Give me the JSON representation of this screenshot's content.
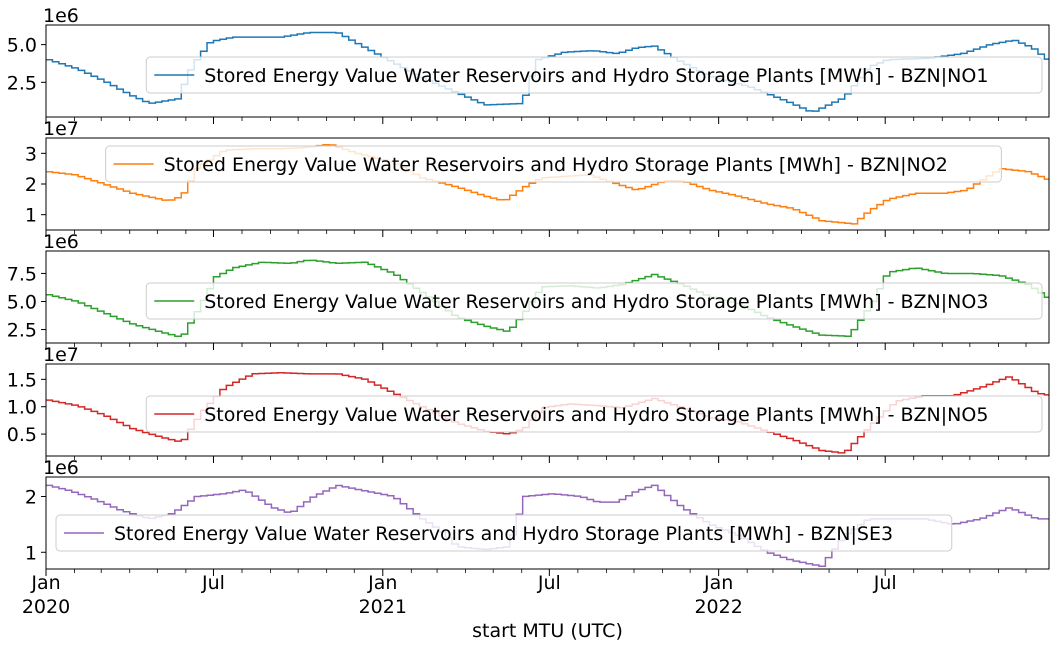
{
  "figure": {
    "xlabel": "start MTU (UTC)",
    "x_ticks": [
      {
        "date": "2020-01-01",
        "label": "Jan",
        "sublabel": "2020"
      },
      {
        "date": "2020-07-01",
        "label": "Jul",
        "sublabel": ""
      },
      {
        "date": "2021-01-01",
        "label": "Jan",
        "sublabel": "2021"
      },
      {
        "date": "2021-07-01",
        "label": "Jul",
        "sublabel": ""
      },
      {
        "date": "2022-01-01",
        "label": "Jan",
        "sublabel": "2022"
      },
      {
        "date": "2022-07-01",
        "label": "Jul",
        "sublabel": ""
      }
    ],
    "xlim": [
      "2020-01-01",
      "2022-12-26"
    ]
  },
  "chart_data": [
    {
      "type": "line",
      "step": true,
      "series": [
        {
          "name": "Stored Energy Value Water Reservoirs and Hydro Storage Plants [MWh] - BZN|NO1",
          "color": "#1f77b4",
          "keypoints": [
            [
              "2020-01-01",
              4.0
            ],
            [
              "2020-02-01",
              3.4
            ],
            [
              "2020-03-01",
              2.6
            ],
            [
              "2020-04-01",
              1.6
            ],
            [
              "2020-04-20",
              1.1
            ],
            [
              "2020-05-20",
              1.4
            ],
            [
              "2020-06-05",
              3.6
            ],
            [
              "2020-06-25",
              5.2
            ],
            [
              "2020-07-20",
              5.5
            ],
            [
              "2020-09-10",
              5.5
            ],
            [
              "2020-10-10",
              5.8
            ],
            [
              "2020-11-10",
              5.8
            ],
            [
              "2020-12-10",
              4.8
            ],
            [
              "2021-01-10",
              3.8
            ],
            [
              "2021-02-10",
              2.8
            ],
            [
              "2021-03-20",
              1.8
            ],
            [
              "2021-04-20",
              1.0
            ],
            [
              "2021-05-30",
              1.1
            ],
            [
              "2021-06-15",
              4.0
            ],
            [
              "2021-07-15",
              4.5
            ],
            [
              "2021-08-15",
              4.6
            ],
            [
              "2021-09-10",
              4.4
            ],
            [
              "2021-10-01",
              4.8
            ],
            [
              "2021-10-20",
              4.9
            ],
            [
              "2021-11-20",
              3.8
            ],
            [
              "2021-12-20",
              2.9
            ],
            [
              "2022-02-01",
              2.2
            ],
            [
              "2022-03-15",
              1.2
            ],
            [
              "2022-04-10",
              0.5
            ],
            [
              "2022-05-15",
              1.5
            ],
            [
              "2022-06-10",
              3.5
            ],
            [
              "2022-07-01",
              4.0
            ],
            [
              "2022-08-15",
              4.1
            ],
            [
              "2022-09-20",
              4.4
            ],
            [
              "2022-10-20",
              5.0
            ],
            [
              "2022-11-15",
              5.3
            ],
            [
              "2022-12-05",
              4.8
            ],
            [
              "2022-12-26",
              3.8
            ]
          ]
        }
      ],
      "ylim": [
        0.2,
        6.3
      ],
      "y_ticks": [
        2.5,
        5.0
      ],
      "y_tick_labels": [
        "2.5",
        "5.0"
      ],
      "scale_label": "1e6",
      "legend": "center-right"
    },
    {
      "type": "line",
      "step": true,
      "series": [
        {
          "name": "Stored Energy Value Water Reservoirs and Hydro Storage Plants [MWh] - BZN|NO2",
          "color": "#ff7f0e",
          "keypoints": [
            [
              "2020-01-01",
              2.4
            ],
            [
              "2020-01-30",
              2.3
            ],
            [
              "2020-03-01",
              2.0
            ],
            [
              "2020-04-01",
              1.7
            ],
            [
              "2020-05-10",
              1.45
            ],
            [
              "2020-05-25",
              1.6
            ],
            [
              "2020-06-10",
              2.5
            ],
            [
              "2020-07-10",
              3.1
            ],
            [
              "2020-08-10",
              3.15
            ],
            [
              "2020-09-10",
              3.15
            ],
            [
              "2020-10-10",
              3.2
            ],
            [
              "2020-11-01",
              3.3
            ],
            [
              "2020-12-01",
              3.0
            ],
            [
              "2021-01-10",
              2.7
            ],
            [
              "2021-02-10",
              2.2
            ],
            [
              "2021-03-20",
              1.9
            ],
            [
              "2021-04-20",
              1.6
            ],
            [
              "2021-05-10",
              1.45
            ],
            [
              "2021-06-01",
              1.9
            ],
            [
              "2021-06-20",
              2.2
            ],
            [
              "2021-08-10",
              2.3
            ],
            [
              "2021-09-10",
              2.0
            ],
            [
              "2021-10-01",
              1.8
            ],
            [
              "2021-11-01",
              2.1
            ],
            [
              "2021-11-20",
              2.1
            ],
            [
              "2021-12-20",
              1.8
            ],
            [
              "2022-01-20",
              1.6
            ],
            [
              "2022-02-20",
              1.35
            ],
            [
              "2022-03-20",
              1.2
            ],
            [
              "2022-04-20",
              0.8
            ],
            [
              "2022-05-25",
              0.7
            ],
            [
              "2022-06-10",
              1.1
            ],
            [
              "2022-07-01",
              1.5
            ],
            [
              "2022-08-01",
              1.7
            ],
            [
              "2022-09-01",
              1.7
            ],
            [
              "2022-09-25",
              1.8
            ],
            [
              "2022-10-10",
              2.1
            ],
            [
              "2022-11-01",
              2.5
            ],
            [
              "2022-12-01",
              2.4
            ],
            [
              "2022-12-26",
              2.1
            ]
          ]
        }
      ],
      "ylim": [
        0.5,
        3.5
      ],
      "y_ticks": [
        1,
        2,
        3
      ],
      "y_tick_labels": [
        "1",
        "2",
        "3"
      ],
      "scale_label": "1e7",
      "legend": "top-center"
    },
    {
      "type": "line",
      "step": true,
      "series": [
        {
          "name": "Stored Energy Value Water Reservoirs and Hydro Storage Plants [MWh] - BZN|NO3",
          "color": "#2ca02c",
          "keypoints": [
            [
              "2020-01-01",
              5.6
            ],
            [
              "2020-02-01",
              5.0
            ],
            [
              "2020-03-01",
              4.0
            ],
            [
              "2020-04-01",
              3.0
            ],
            [
              "2020-05-01",
              2.3
            ],
            [
              "2020-05-25",
              1.8
            ],
            [
              "2020-06-15",
              4.8
            ],
            [
              "2020-07-01",
              7.2
            ],
            [
              "2020-07-20",
              8.0
            ],
            [
              "2020-08-20",
              8.5
            ],
            [
              "2020-09-20",
              8.4
            ],
            [
              "2020-10-10",
              8.7
            ],
            [
              "2020-11-10",
              8.4
            ],
            [
              "2020-12-10",
              8.5
            ],
            [
              "2021-01-10",
              7.5
            ],
            [
              "2021-02-10",
              5.8
            ],
            [
              "2021-03-20",
              3.6
            ],
            [
              "2021-04-20",
              2.8
            ],
            [
              "2021-05-15",
              2.3
            ],
            [
              "2021-06-01",
              4.0
            ],
            [
              "2021-06-20",
              6.3
            ],
            [
              "2021-07-20",
              6.4
            ],
            [
              "2021-08-20",
              6.2
            ],
            [
              "2021-09-15",
              6.5
            ],
            [
              "2021-10-20",
              7.4
            ],
            [
              "2021-11-20",
              6.5
            ],
            [
              "2021-12-20",
              5.4
            ],
            [
              "2022-01-20",
              4.8
            ],
            [
              "2022-02-20",
              3.6
            ],
            [
              "2022-03-20",
              2.8
            ],
            [
              "2022-04-20",
              2.0
            ],
            [
              "2022-05-20",
              1.9
            ],
            [
              "2022-06-15",
              5.0
            ],
            [
              "2022-07-01",
              7.6
            ],
            [
              "2022-08-01",
              8.0
            ],
            [
              "2022-09-01",
              7.5
            ],
            [
              "2022-10-01",
              7.5
            ],
            [
              "2022-11-01",
              7.3
            ],
            [
              "2022-12-01",
              6.5
            ],
            [
              "2022-12-26",
              5.1
            ]
          ]
        }
      ],
      "ylim": [
        1.3,
        9.5
      ],
      "y_ticks": [
        2.5,
        5.0,
        7.5
      ],
      "y_tick_labels": [
        "2.5",
        "5.0",
        "7.5"
      ],
      "scale_label": "1e6",
      "legend": "center-right"
    },
    {
      "type": "line",
      "step": true,
      "series": [
        {
          "name": "Stored Energy Value Water Reservoirs and Hydro Storage Plants [MWh] - BZN|NO5",
          "color": "#d62728",
          "keypoints": [
            [
              "2020-01-01",
              1.12
            ],
            [
              "2020-02-01",
              1.02
            ],
            [
              "2020-03-01",
              0.85
            ],
            [
              "2020-04-01",
              0.6
            ],
            [
              "2020-05-01",
              0.45
            ],
            [
              "2020-05-25",
              0.35
            ],
            [
              "2020-06-15",
              0.9
            ],
            [
              "2020-07-10",
              1.35
            ],
            [
              "2020-08-10",
              1.6
            ],
            [
              "2020-09-10",
              1.62
            ],
            [
              "2020-10-10",
              1.6
            ],
            [
              "2020-11-10",
              1.6
            ],
            [
              "2020-12-10",
              1.5
            ],
            [
              "2021-01-10",
              1.25
            ],
            [
              "2021-02-10",
              1.0
            ],
            [
              "2021-03-20",
              0.7
            ],
            [
              "2021-04-20",
              0.55
            ],
            [
              "2021-05-15",
              0.5
            ],
            [
              "2021-06-01",
              0.6
            ],
            [
              "2021-06-20",
              0.98
            ],
            [
              "2021-07-20",
              1.05
            ],
            [
              "2021-08-20",
              1.02
            ],
            [
              "2021-09-15",
              0.98
            ],
            [
              "2021-10-20",
              1.15
            ],
            [
              "2021-11-20",
              0.98
            ],
            [
              "2021-12-20",
              0.8
            ],
            [
              "2022-01-20",
              0.72
            ],
            [
              "2022-02-20",
              0.55
            ],
            [
              "2022-03-20",
              0.4
            ],
            [
              "2022-04-20",
              0.2
            ],
            [
              "2022-05-15",
              0.15
            ],
            [
              "2022-06-15",
              0.7
            ],
            [
              "2022-07-10",
              1.1
            ],
            [
              "2022-08-10",
              1.2
            ],
            [
              "2022-09-10",
              1.2
            ],
            [
              "2022-10-10",
              1.35
            ],
            [
              "2022-11-10",
              1.55
            ],
            [
              "2022-12-10",
              1.25
            ],
            [
              "2022-12-26",
              1.2
            ]
          ]
        }
      ],
      "ylim": [
        0.1,
        1.78
      ],
      "y_ticks": [
        0.5,
        1.0,
        1.5
      ],
      "y_tick_labels": [
        "0.5",
        "1.0",
        "1.5"
      ],
      "scale_label": "1e7",
      "legend": "center-right"
    },
    {
      "type": "line",
      "step": true,
      "series": [
        {
          "name": "Stored Energy Value Water Reservoirs and Hydro Storage Plants [MWh] - BZN|SE3",
          "color": "#9467bd",
          "keypoints": [
            [
              "2020-01-01",
              2.2
            ],
            [
              "2020-01-25",
              2.1
            ],
            [
              "2020-02-20",
              1.95
            ],
            [
              "2020-03-20",
              1.75
            ],
            [
              "2020-04-20",
              1.6
            ],
            [
              "2020-05-15",
              1.7
            ],
            [
              "2020-06-10",
              2.0
            ],
            [
              "2020-07-10",
              2.05
            ],
            [
              "2020-08-01",
              2.12
            ],
            [
              "2020-09-01",
              1.8
            ],
            [
              "2020-09-20",
              1.7
            ],
            [
              "2020-10-15",
              2.0
            ],
            [
              "2020-11-10",
              2.2
            ],
            [
              "2020-12-10",
              2.1
            ],
            [
              "2021-01-10",
              2.0
            ],
            [
              "2021-02-10",
              1.6
            ],
            [
              "2021-03-01",
              1.4
            ],
            [
              "2021-03-20",
              1.1
            ],
            [
              "2021-04-20",
              1.05
            ],
            [
              "2021-05-15",
              1.1
            ],
            [
              "2021-06-01",
              2.0
            ],
            [
              "2021-07-01",
              2.05
            ],
            [
              "2021-08-01",
              2.0
            ],
            [
              "2021-08-20",
              1.9
            ],
            [
              "2021-09-10",
              1.9
            ],
            [
              "2021-10-01",
              2.1
            ],
            [
              "2021-10-20",
              2.2
            ],
            [
              "2021-11-20",
              1.8
            ],
            [
              "2021-12-20",
              1.5
            ],
            [
              "2022-01-20",
              1.3
            ],
            [
              "2022-02-20",
              1.0
            ],
            [
              "2022-03-20",
              0.85
            ],
            [
              "2022-04-20",
              0.75
            ],
            [
              "2022-05-15",
              1.3
            ],
            [
              "2022-06-10",
              1.6
            ],
            [
              "2022-07-10",
              1.6
            ],
            [
              "2022-08-10",
              1.6
            ],
            [
              "2022-09-10",
              1.5
            ],
            [
              "2022-10-10",
              1.6
            ],
            [
              "2022-11-10",
              1.8
            ],
            [
              "2022-12-10",
              1.6
            ],
            [
              "2022-12-26",
              1.6
            ]
          ]
        }
      ],
      "ylim": [
        0.7,
        2.35
      ],
      "y_ticks": [
        1,
        2
      ],
      "y_tick_labels": [
        "1",
        "2"
      ],
      "scale_label": "1e6",
      "legend": "center-left"
    }
  ]
}
